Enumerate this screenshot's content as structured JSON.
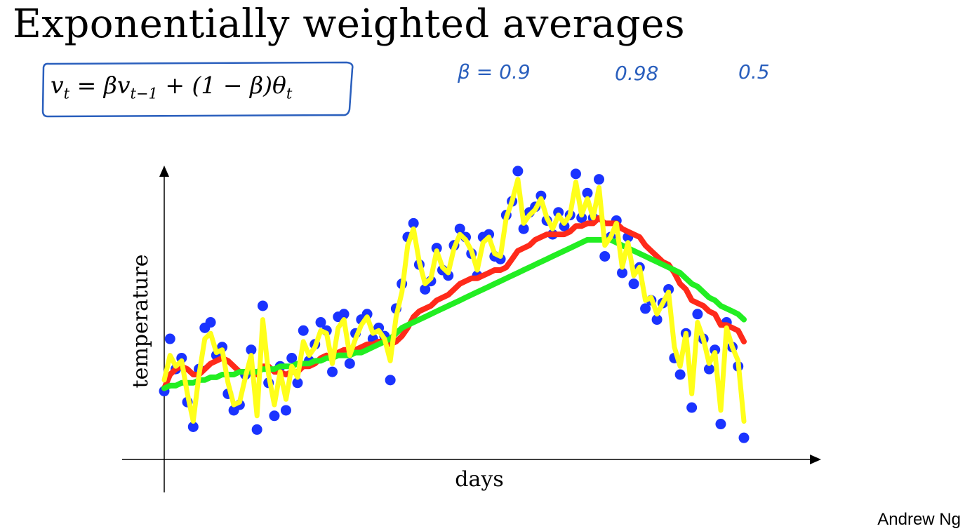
{
  "slide": {
    "title": "Exponentially weighted averages",
    "formula": {
      "v": "v",
      "t": "t",
      "eq": " = β",
      "v2": "v",
      "tm1": "t−1",
      "rest": " + (1 − β)θ",
      "t2": "t"
    },
    "handwritten_betas": [
      "β = 0.9",
      "0.98",
      "0.5"
    ],
    "credit": "Andrew Ng"
  },
  "colors": {
    "points": "#1a33ff",
    "beta_0_9": "#ff2a1a",
    "beta_0_98": "#22ee22",
    "beta_0_5": "#ffff1a",
    "ink": "#2a5fbd"
  },
  "chart_data": {
    "type": "scatter",
    "xlabel": "days",
    "ylabel": "temperature",
    "xlim": [
      0,
      100
    ],
    "ylim": [
      0,
      100
    ],
    "grid": false,
    "points": {
      "x": [
        0,
        1,
        2,
        3,
        4,
        5,
        6,
        7,
        8,
        9,
        10,
        11,
        12,
        13,
        14,
        15,
        16,
        17,
        18,
        19,
        20,
        21,
        22,
        23,
        24,
        25,
        26,
        27,
        28,
        29,
        30,
        31,
        32,
        33,
        34,
        35,
        36,
        37,
        38,
        39,
        40,
        41,
        42,
        43,
        44,
        45,
        46,
        47,
        48,
        49,
        50,
        51,
        52,
        53,
        54,
        55,
        56,
        57,
        58,
        59,
        60,
        61,
        62,
        63,
        64,
        65,
        66,
        67,
        68,
        69,
        70,
        71,
        72,
        73,
        74,
        75,
        76,
        77,
        78,
        79,
        80,
        81,
        82,
        83,
        84,
        85,
        86,
        87,
        88,
        89,
        90,
        91,
        92,
        93,
        94,
        95,
        96,
        97,
        98,
        99,
        100
      ],
      "y": [
        19,
        38,
        27,
        31,
        15,
        6,
        27,
        42,
        44,
        32,
        35,
        18,
        12,
        14,
        25,
        34,
        5,
        50,
        22,
        10,
        28,
        12,
        31,
        22,
        41,
        30,
        36,
        44,
        41,
        26,
        46,
        47,
        29,
        40,
        45,
        47,
        38,
        42,
        39,
        23,
        49,
        58,
        75,
        80,
        65,
        56,
        59,
        71,
        63,
        61,
        72,
        78,
        75,
        69,
        61,
        75,
        76,
        68,
        67,
        83,
        88,
        99,
        78,
        84,
        86,
        90,
        81,
        76,
        84,
        79,
        83,
        98,
        82,
        91,
        82,
        96,
        68,
        75,
        81,
        62,
        75,
        58,
        64,
        49,
        52,
        45,
        51,
        56,
        31,
        25,
        40,
        13,
        47,
        38,
        27,
        34,
        7,
        44,
        35,
        28,
        2
      ]
    },
    "series": [
      {
        "name": "β = 0.9",
        "values": [
          20,
          25,
          27,
          28,
          27,
          25,
          25,
          27,
          29,
          30,
          31,
          30,
          28,
          26,
          26,
          27,
          25,
          28,
          28,
          26,
          26,
          25,
          26,
          26,
          28,
          28,
          29,
          31,
          32,
          31,
          33,
          34,
          34,
          34,
          35,
          36,
          36,
          37,
          37,
          36,
          37,
          39,
          42,
          46,
          48,
          49,
          50,
          52,
          53,
          54,
          56,
          58,
          59,
          60,
          60,
          61,
          62,
          63,
          63,
          64,
          67,
          70,
          71,
          72,
          74,
          75,
          76,
          76,
          76,
          76,
          77,
          79,
          79,
          80,
          80,
          82,
          80,
          80,
          80,
          78,
          77,
          76,
          75,
          72,
          70,
          68,
          66,
          65,
          62,
          58,
          56,
          52,
          51,
          50,
          48,
          47,
          43,
          43,
          42,
          41,
          37
        ]
      },
      {
        "name": "0.98",
        "values": [
          20,
          21,
          21,
          22,
          22,
          22,
          23,
          23,
          24,
          24,
          25,
          25,
          25,
          26,
          26,
          26,
          26,
          27,
          27,
          27,
          28,
          28,
          28,
          29,
          29,
          29,
          30,
          30,
          31,
          31,
          32,
          32,
          32,
          33,
          33,
          34,
          35,
          36,
          37,
          38,
          40,
          42,
          43,
          44,
          45,
          46,
          47,
          48,
          49,
          50,
          51,
          52,
          53,
          54,
          55,
          56,
          57,
          58,
          59,
          60,
          61,
          62,
          63,
          64,
          65,
          66,
          67,
          68,
          69,
          70,
          71,
          72,
          73,
          74,
          74,
          74,
          74,
          74,
          73,
          72,
          71,
          70,
          69,
          68,
          67,
          66,
          65,
          64,
          63,
          62,
          60,
          58,
          57,
          55,
          53,
          52,
          50,
          49,
          48,
          47,
          45
        ]
      },
      {
        "name": "0.5",
        "values": [
          23,
          32,
          28,
          30,
          18,
          8,
          25,
          38,
          40,
          33,
          34,
          22,
          14,
          15,
          24,
          32,
          10,
          45,
          25,
          14,
          26,
          16,
          28,
          24,
          37,
          32,
          35,
          41,
          40,
          29,
          42,
          45,
          32,
          38,
          43,
          46,
          40,
          41,
          38,
          30,
          46,
          55,
          72,
          78,
          66,
          58,
          60,
          70,
          64,
          62,
          71,
          76,
          74,
          70,
          63,
          73,
          75,
          69,
          68,
          82,
          88,
          96,
          80,
          83,
          85,
          89,
          82,
          78,
          83,
          80,
          83,
          95,
          83,
          89,
          82,
          93,
          72,
          75,
          80,
          64,
          73,
          61,
          64,
          52,
          53,
          47,
          51,
          55,
          35,
          28,
          40,
          18,
          44,
          38,
          29,
          33,
          12,
          42,
          35,
          30,
          8
        ]
      }
    ]
  }
}
